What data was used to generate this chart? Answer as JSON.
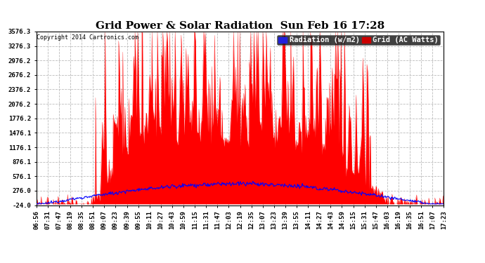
{
  "title": "Grid Power & Solar Radiation  Sun Feb 16 17:28",
  "copyright": "Copyright 2014 Cartronics.com",
  "legend_radiation": "Radiation (w/m2)",
  "legend_grid": "Grid (AC Watts)",
  "ymin": -24.0,
  "ymax": 3576.3,
  "yticks": [
    -24.0,
    276.0,
    576.1,
    876.1,
    1176.1,
    1476.1,
    1776.2,
    2076.2,
    2376.2,
    2676.2,
    2976.2,
    3276.3,
    3576.3
  ],
  "ytick_labels": [
    "-24.0",
    "276.0",
    "576.1",
    "876.1",
    "1176.1",
    "1476.1",
    "1776.2",
    "2076.2",
    "2376.2",
    "2676.2",
    "2976.2",
    "3276.3",
    "3576.3"
  ],
  "xtick_labels": [
    "06:56",
    "07:31",
    "07:47",
    "08:19",
    "08:35",
    "08:51",
    "09:07",
    "09:23",
    "09:39",
    "09:55",
    "10:11",
    "10:27",
    "10:43",
    "10:59",
    "11:15",
    "11:31",
    "11:47",
    "12:03",
    "12:19",
    "12:35",
    "13:07",
    "13:23",
    "13:39",
    "13:55",
    "14:11",
    "14:27",
    "14:43",
    "14:59",
    "15:15",
    "15:31",
    "15:47",
    "16:03",
    "16:19",
    "16:35",
    "16:51",
    "17:07",
    "17:23"
  ],
  "background_color": "#ffffff",
  "plot_bg_color": "#ffffff",
  "grid_color": "#bbbbbb",
  "red_color": "#ff0000",
  "blue_color": "#0000ff",
  "title_fontsize": 11,
  "tick_fontsize": 6.5,
  "legend_fontsize": 7.5
}
